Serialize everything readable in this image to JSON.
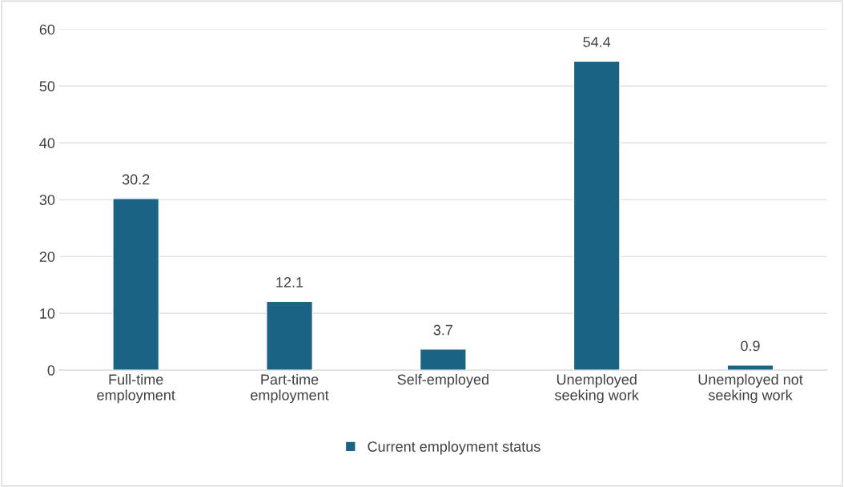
{
  "chart_data": {
    "type": "bar",
    "categories": [
      "Full-time\nemployment",
      "Part-time\nemployment",
      "Self-employed",
      "Unemployed\nseeking work",
      "Unemployed not\nseeking work"
    ],
    "series": [
      {
        "name": "Current employment status",
        "color": "#1b6384",
        "values": [
          30.2,
          12.1,
          3.7,
          54.4,
          0.9
        ]
      }
    ],
    "ylim": [
      0,
      60
    ],
    "yticks": [
      0,
      10,
      20,
      30,
      40,
      50,
      60
    ],
    "grid": "y",
    "legend": "bottom",
    "data_labels": true
  }
}
